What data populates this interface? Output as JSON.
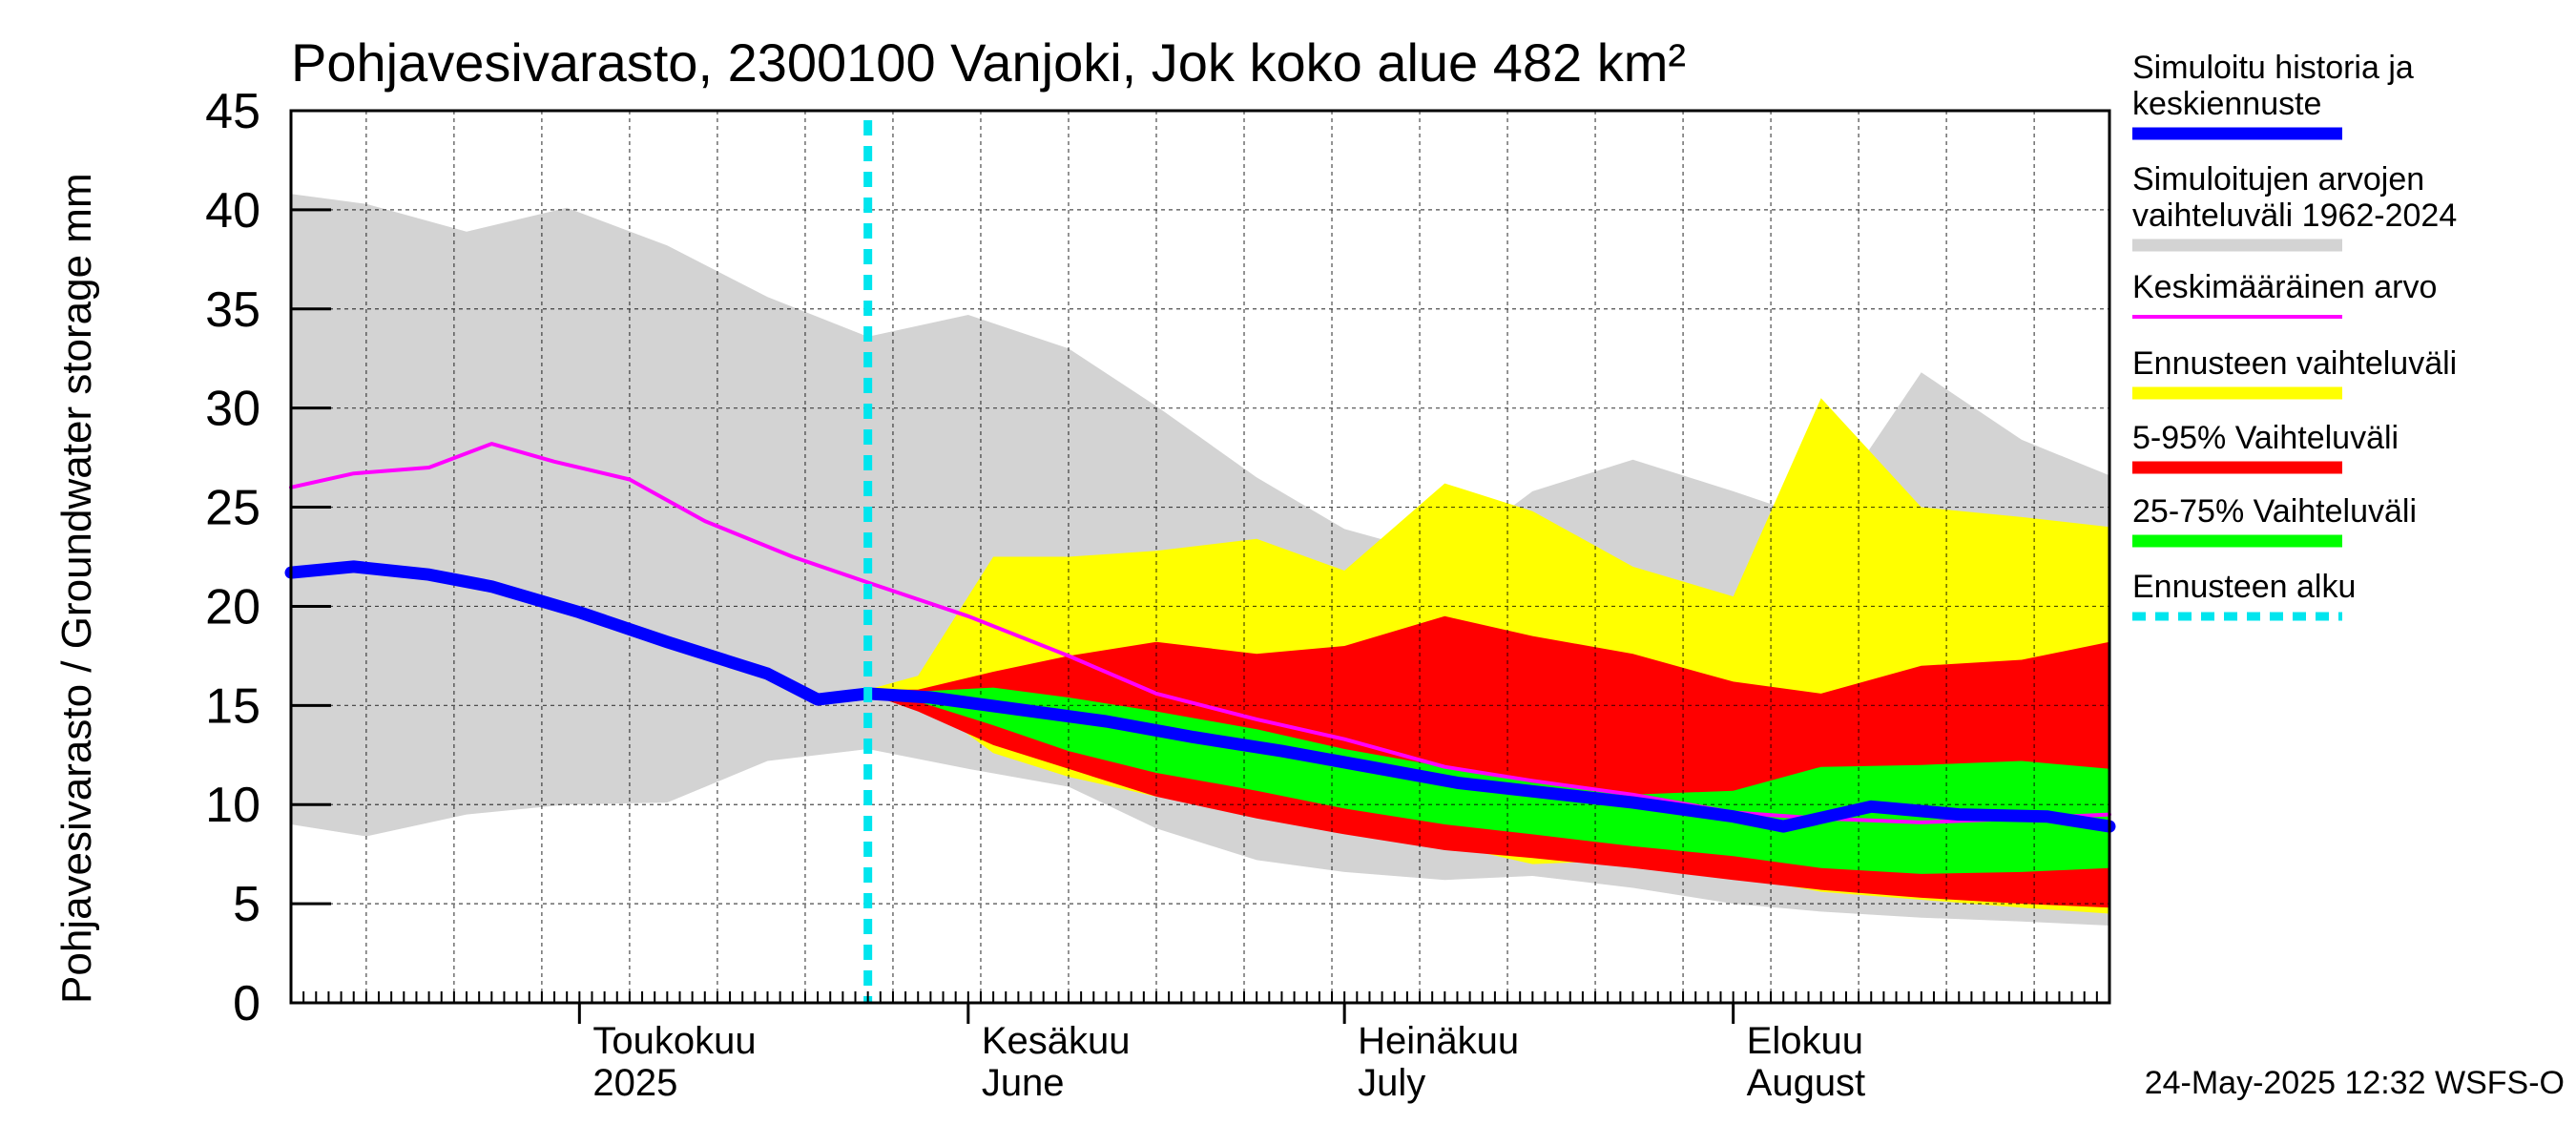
{
  "chart_data": {
    "type": "area",
    "title": "Pohjavesivarasto, 2300100 Vanjoki, Jok koko alue 482 km²",
    "ylabel": "Pohjavesivarasto / Groundwater storage   mm",
    "ylim": [
      0,
      45
    ],
    "yticks": [
      0,
      5,
      10,
      15,
      20,
      25,
      30,
      35,
      40,
      45
    ],
    "xlim": [
      "2025-04-08",
      "2025-08-31"
    ],
    "grid": true,
    "legend_position": "right",
    "forecast_start": "2025-05-24",
    "x_month_labels": [
      {
        "date": "2025-05-01",
        "fi": "Toukokuu",
        "en": "2025"
      },
      {
        "date": "2025-06-01",
        "fi": "Kesäkuu",
        "en": "June"
      },
      {
        "date": "2025-07-01",
        "fi": "Heinäkuu",
        "en": "July"
      },
      {
        "date": "2025-08-01",
        "fi": "Elokuu",
        "en": "August"
      }
    ],
    "series": [
      {
        "name": "Simuloitujen arvojen vaihteluväli 1962-2024",
        "type": "band",
        "color": "#d3d3d3",
        "x": [
          "2025-04-08",
          "2025-04-14",
          "2025-04-22",
          "2025-04-30",
          "2025-05-08",
          "2025-05-16",
          "2025-05-24",
          "2025-06-01",
          "2025-06-09",
          "2025-06-16",
          "2025-06-24",
          "2025-07-01",
          "2025-07-09",
          "2025-07-16",
          "2025-07-24",
          "2025-08-01",
          "2025-08-08",
          "2025-08-16",
          "2025-08-24",
          "2025-08-31"
        ],
        "upper": [
          40.8,
          40.3,
          38.9,
          40.1,
          38.2,
          35.6,
          33.6,
          34.7,
          33.0,
          30.1,
          26.5,
          23.9,
          22.5,
          25.8,
          27.4,
          25.8,
          24.3,
          31.8,
          28.4,
          26.6
        ],
        "lower": [
          9.0,
          8.4,
          9.5,
          10.0,
          10.1,
          12.2,
          12.8,
          11.8,
          10.9,
          8.8,
          7.2,
          6.6,
          6.2,
          6.4,
          5.8,
          5.0,
          4.6,
          4.3,
          4.1,
          3.9
        ]
      },
      {
        "name": "Ennusteen vaihteluväli",
        "type": "band",
        "color": "#ffff00",
        "x": [
          "2025-05-24",
          "2025-05-28",
          "2025-06-03",
          "2025-06-09",
          "2025-06-16",
          "2025-06-24",
          "2025-07-01",
          "2025-07-09",
          "2025-07-16",
          "2025-07-24",
          "2025-08-01",
          "2025-08-08",
          "2025-08-16",
          "2025-08-24",
          "2025-08-31"
        ],
        "upper": [
          15.8,
          16.5,
          22.5,
          22.5,
          22.8,
          23.4,
          21.8,
          26.2,
          24.8,
          22.0,
          20.5,
          30.5,
          25.0,
          24.5,
          24.0
        ],
        "lower": [
          15.8,
          15.4,
          12.6,
          11.4,
          10.4,
          9.6,
          8.6,
          8.0,
          7.0,
          7.2,
          6.4,
          5.6,
          5.2,
          4.8,
          4.5
        ]
      },
      {
        "name": "5-95% Vaihteluväli",
        "type": "band",
        "color": "#ff0000",
        "x": [
          "2025-05-24",
          "2025-05-28",
          "2025-06-03",
          "2025-06-09",
          "2025-06-16",
          "2025-06-24",
          "2025-07-01",
          "2025-07-09",
          "2025-07-16",
          "2025-07-24",
          "2025-08-01",
          "2025-08-08",
          "2025-08-16",
          "2025-08-24",
          "2025-08-31"
        ],
        "upper": [
          15.8,
          15.8,
          16.7,
          17.5,
          18.2,
          17.6,
          18.0,
          19.5,
          18.5,
          17.6,
          16.2,
          15.6,
          17.0,
          17.3,
          18.2
        ],
        "lower": [
          15.6,
          14.7,
          13.0,
          11.8,
          10.4,
          9.3,
          8.5,
          7.7,
          7.3,
          6.8,
          6.2,
          5.7,
          5.3,
          5.0,
          4.8
        ]
      },
      {
        "name": "25-75% Vaihteluväli",
        "type": "band",
        "color": "#00ff00",
        "x": [
          "2025-05-24",
          "2025-05-28",
          "2025-06-03",
          "2025-06-09",
          "2025-06-16",
          "2025-06-24",
          "2025-07-01",
          "2025-07-09",
          "2025-07-16",
          "2025-07-24",
          "2025-08-01",
          "2025-08-08",
          "2025-08-16",
          "2025-08-24",
          "2025-08-31"
        ],
        "upper": [
          15.8,
          15.7,
          15.9,
          15.4,
          14.7,
          13.8,
          12.8,
          11.9,
          11.1,
          10.5,
          10.7,
          11.9,
          12.0,
          12.2,
          11.8
        ],
        "lower": [
          15.7,
          15.2,
          14.0,
          12.7,
          11.6,
          10.7,
          9.8,
          9.0,
          8.5,
          7.9,
          7.4,
          6.8,
          6.5,
          6.6,
          6.8
        ]
      },
      {
        "name": "Keskimääräinen arvo",
        "type": "line",
        "color": "#ff00ff",
        "x": [
          "2025-04-08",
          "2025-04-13",
          "2025-04-19",
          "2025-04-24",
          "2025-04-29",
          "2025-05-05",
          "2025-05-11",
          "2025-05-18",
          "2025-05-24",
          "2025-06-01",
          "2025-06-09",
          "2025-06-16",
          "2025-06-24",
          "2025-07-01",
          "2025-07-09",
          "2025-07-16",
          "2025-07-24",
          "2025-08-01",
          "2025-08-08",
          "2025-08-16",
          "2025-08-24",
          "2025-08-31"
        ],
        "y": [
          26.0,
          26.7,
          27.0,
          28.2,
          27.3,
          26.4,
          24.3,
          22.5,
          21.2,
          19.5,
          17.5,
          15.6,
          14.3,
          13.3,
          11.9,
          11.2,
          10.5,
          9.6,
          9.3,
          9.1,
          9.3,
          9.5
        ]
      },
      {
        "name": "Simuloitu historia ja keskiennuste",
        "type": "line",
        "color": "#0000ff",
        "x": [
          "2025-04-08",
          "2025-04-13",
          "2025-04-19",
          "2025-04-24",
          "2025-05-01",
          "2025-05-08",
          "2025-05-16",
          "2025-05-20",
          "2025-05-24",
          "2025-05-29",
          "2025-06-05",
          "2025-06-12",
          "2025-06-19",
          "2025-06-26",
          "2025-07-03",
          "2025-07-10",
          "2025-07-17",
          "2025-07-24",
          "2025-08-01",
          "2025-08-05",
          "2025-08-12",
          "2025-08-19",
          "2025-08-26",
          "2025-08-31"
        ],
        "y": [
          21.7,
          22.0,
          21.6,
          21.0,
          19.7,
          18.2,
          16.6,
          15.3,
          15.6,
          15.4,
          14.8,
          14.2,
          13.4,
          12.7,
          11.9,
          11.1,
          10.6,
          10.1,
          9.4,
          8.9,
          9.9,
          9.5,
          9.4,
          8.9
        ]
      },
      {
        "name": "Ennusteen alku",
        "type": "vline",
        "color": "#00e5ee"
      }
    ],
    "footer": "24-May-2025 12:32 WSFS-O"
  }
}
